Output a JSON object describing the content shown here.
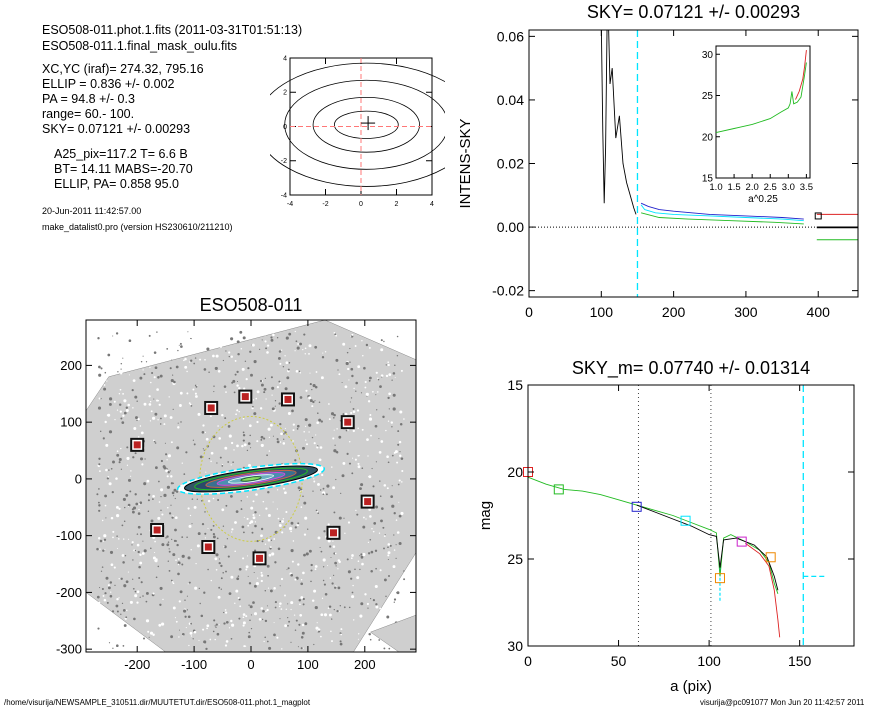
{
  "header": {
    "file_line": "ESO508-011.phot.1.fits  (2011-03-31T01:51:13)",
    "mask_line": "ESO508-011.1.final_mask_oulu.fits"
  },
  "params": [
    "XC,YC (iraf)=   274.32, 795.16",
    "ELLIP = 0.836 +/- 0.002",
    "PA    =  94.8 +/-   0.3",
    "range=   60.-  100.",
    "SKY= 0.07121 +/- 0.00293"
  ],
  "params2": [
    "A25_pix=117.2   T= 6.6  B",
    "BT=  14.11   MABS=-20.70",
    "ELLIP, PA= 0.858    95.0"
  ],
  "run_date": "20-Jun-2011 11:42:57.00",
  "program": "make_datalist0.pro (version HS230610/211210)",
  "footer": {
    "left": "/home/visurija/NEWSAMPLE_310511.dir/MUUTETUT.dir/ESO508-011.phot.1_magplot",
    "right": "visurija@pc091077  Mon Jun 20 11:42:57 2011"
  },
  "colors": {
    "axis": "#000000",
    "cyan": "#00e5ff",
    "blue": "#2222cc",
    "green": "#22bb22",
    "red": "#dd2222",
    "orange": "#ee8800",
    "magenta": "#cc22cc",
    "dashed_red": "#ff7777"
  },
  "chart_data": [
    {
      "id": "contour",
      "type": "contour",
      "title": "",
      "xlim": [
        -4,
        4
      ],
      "ylim": [
        -4,
        4
      ],
      "xticks": [
        "-4",
        "-2",
        "0",
        "2",
        "4"
      ],
      "yticks": [
        "-4",
        "-2",
        "0",
        "2",
        "4"
      ],
      "crosshair": [
        0.4,
        0.2
      ]
    },
    {
      "id": "image",
      "type": "image",
      "title": "ESO508-011",
      "xlim": [
        -290,
        290
      ],
      "ylim": [
        -305,
        280
      ],
      "xticks": [
        "-200",
        "-100",
        "0",
        "100",
        "200"
      ],
      "yticks": [
        "-300",
        "-200",
        "-100",
        "0",
        "100",
        "200"
      ],
      "star_masks": [
        [
          -200,
          60
        ],
        [
          -70,
          125
        ],
        [
          -10,
          145
        ],
        [
          65,
          140
        ],
        [
          170,
          100
        ],
        [
          -165,
          -90
        ],
        [
          -75,
          -120
        ],
        [
          15,
          -140
        ],
        [
          145,
          -95
        ],
        [
          205,
          -40
        ]
      ]
    },
    {
      "id": "sky",
      "type": "line",
      "title": "SKY= 0.07121 +/- 0.00293",
      "xlabel": "",
      "ylabel": "INTENS-SKY",
      "xlim": [
        0,
        455
      ],
      "ylim": [
        -0.022,
        0.062
      ],
      "xticks": [
        "0",
        "100",
        "200",
        "300",
        "400"
      ],
      "yticks": [
        "-0.02",
        "0.00",
        "0.02",
        "0.04",
        "0.06"
      ],
      "series": [
        {
          "color": "black",
          "points": [
            [
              100,
              0.064
            ],
            [
              102,
              0.03
            ],
            [
              104,
              0.0075
            ],
            [
              106,
              0.025
            ],
            [
              108,
              0.064
            ],
            [
              110,
              0.064
            ],
            [
              112,
              0.045
            ],
            [
              115,
              0.05
            ],
            [
              120,
              0.028
            ],
            [
              125,
              0.035
            ],
            [
              130,
              0.02
            ],
            [
              135,
              0.014
            ],
            [
              140,
              0.01
            ],
            [
              145,
              0.006
            ],
            [
              148,
              0.004
            ]
          ]
        },
        {
          "color": "cyan",
          "points": [
            [
              155,
              0.007
            ],
            [
              160,
              0.0055
            ],
            [
              175,
              0.0045
            ],
            [
              200,
              0.004
            ],
            [
              250,
              0.0035
            ],
            [
              300,
              0.003
            ],
            [
              350,
              0.0025
            ],
            [
              380,
              0.002
            ]
          ]
        },
        {
          "color": "blue",
          "points": [
            [
              155,
              0.0075
            ],
            [
              165,
              0.0065
            ],
            [
              180,
              0.0055
            ],
            [
              200,
              0.005
            ],
            [
              250,
              0.004
            ],
            [
              300,
              0.0035
            ],
            [
              350,
              0.003
            ],
            [
              380,
              0.0025
            ]
          ]
        },
        {
          "color": "green",
          "points": [
            [
              155,
              0.0045
            ],
            [
              180,
              0.003
            ],
            [
              220,
              0.0025
            ],
            [
              280,
              0.002
            ],
            [
              340,
              0.0015
            ],
            [
              380,
              0.001
            ]
          ]
        }
      ],
      "sky_vline": 150,
      "right_ticks": [
        {
          "color": "red",
          "y": 0.004
        },
        {
          "color": "black",
          "y": -0.0001
        },
        {
          "color": "green",
          "y": -0.004
        }
      ],
      "inset": {
        "xlabel": "a^0.25",
        "xlim": [
          1.0,
          3.6
        ],
        "ylim": [
          31,
          15
        ],
        "xticks": [
          "1.0",
          "1.5",
          "2.0",
          "2.5",
          "3.0",
          "3.5"
        ],
        "yticks": [
          "15",
          "20",
          "25",
          "30"
        ],
        "series": [
          {
            "color": "green",
            "points": [
              [
                1.0,
                20.5
              ],
              [
                1.5,
                21.0
              ],
              [
                2.0,
                21.5
              ],
              [
                2.5,
                22.2
              ],
              [
                2.8,
                23.0
              ],
              [
                3.0,
                23.5
              ],
              [
                3.05,
                24.0
              ],
              [
                3.1,
                25.5
              ],
              [
                3.15,
                24.0
              ],
              [
                3.25,
                24.2
              ],
              [
                3.35,
                24.8
              ],
              [
                3.45,
                27.5
              ],
              [
                3.5,
                29.0
              ]
            ]
          },
          {
            "color": "red",
            "points": [
              [
                3.2,
                24.5
              ],
              [
                3.3,
                25.5
              ],
              [
                3.4,
                27.0
              ],
              [
                3.45,
                28.5
              ],
              [
                3.5,
                30.5
              ]
            ]
          }
        ]
      }
    },
    {
      "id": "mag",
      "type": "line",
      "title": "SKY_m=  0.07740 +/- 0.01314",
      "xlabel": "a (pix)",
      "ylabel": "mag",
      "xlim": [
        0,
        180
      ],
      "ylim": [
        30,
        15
      ],
      "xticks": [
        "0",
        "50",
        "100",
        "150"
      ],
      "yticks": [
        "15",
        "20",
        "25",
        "30"
      ],
      "series": [
        {
          "color": "green",
          "points": [
            [
              0,
              20.3
            ],
            [
              10,
              20.7
            ],
            [
              20,
              21.0
            ],
            [
              30,
              21.1
            ],
            [
              40,
              21.3
            ],
            [
              50,
              21.6
            ],
            [
              60,
              21.9
            ],
            [
              70,
              22.2
            ],
            [
              80,
              22.5
            ],
            [
              90,
              22.9
            ],
            [
              100,
              23.3
            ],
            [
              104,
              23.5
            ],
            [
              106,
              26.0
            ],
            [
              108,
              23.8
            ],
            [
              112,
              23.6
            ],
            [
              120,
              24.0
            ],
            [
              128,
              24.5
            ],
            [
              133,
              25.2
            ],
            [
              136,
              26.4
            ],
            [
              138,
              27.0
            ]
          ]
        },
        {
          "color": "black",
          "points": [
            [
              60,
              21.9
            ],
            [
              70,
              22.3
            ],
            [
              80,
              22.7
            ],
            [
              90,
              23.1
            ],
            [
              100,
              23.6
            ],
            [
              104,
              23.7
            ],
            [
              106,
              25.5
            ],
            [
              108,
              23.9
            ],
            [
              115,
              23.8
            ],
            [
              125,
              24.2
            ],
            [
              132,
              24.9
            ],
            [
              136,
              26.0
            ],
            [
              138,
              26.8
            ]
          ]
        },
        {
          "color": "red",
          "points": [
            [
              120,
              24.1
            ],
            [
              128,
              24.7
            ],
            [
              133,
              25.4
            ],
            [
              136,
              26.8
            ],
            [
              138,
              28.5
            ],
            [
              139,
              29.5
            ]
          ]
        }
      ],
      "squares": [
        {
          "color": "red",
          "x": 0,
          "y": 20.0
        },
        {
          "color": "green",
          "x": 17,
          "y": 21.0
        },
        {
          "color": "blue",
          "x": 60,
          "y": 22.0
        },
        {
          "color": "cyan",
          "x": 87,
          "y": 22.8
        },
        {
          "color": "orange",
          "x": 106,
          "y": 26.1
        },
        {
          "color": "magenta",
          "x": 118,
          "y": 24.0
        },
        {
          "color": "orange",
          "x": 134,
          "y": 24.9
        }
      ],
      "vlines_dotted": [
        61,
        101
      ],
      "vline_dashed": 152,
      "hline_dashed": {
        "x": [
          152,
          165
        ],
        "y": 26.0
      }
    }
  ]
}
